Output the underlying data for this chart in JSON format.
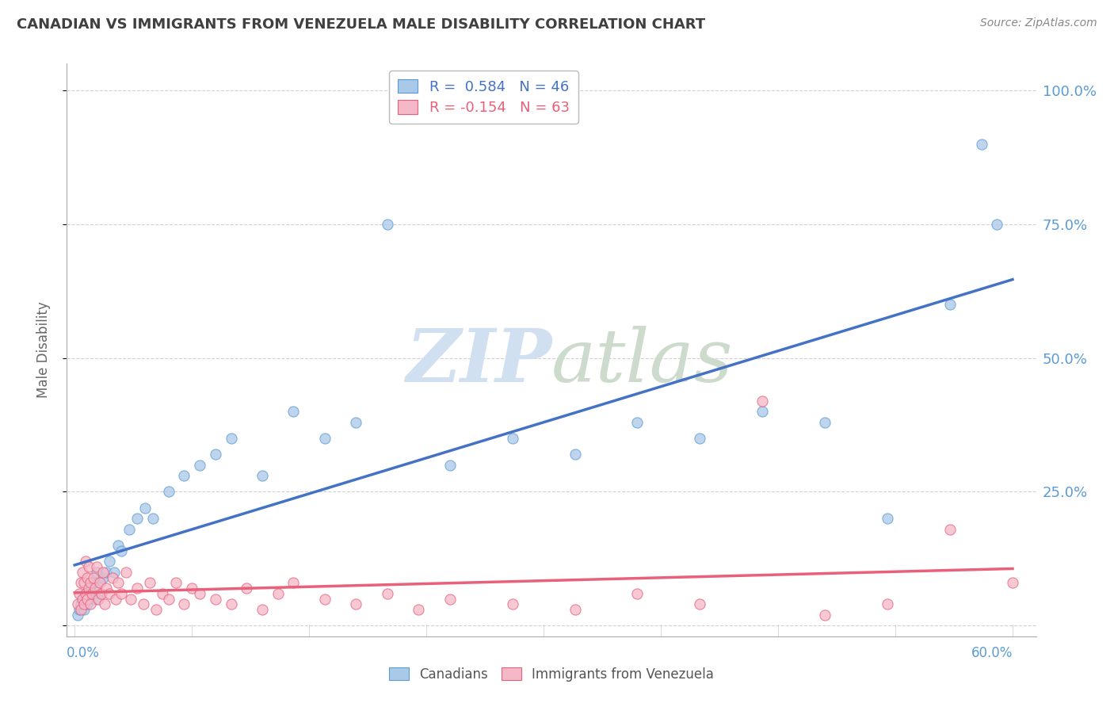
{
  "title": "CANADIAN VS IMMIGRANTS FROM VENEZUELA MALE DISABILITY CORRELATION CHART",
  "source": "Source: ZipAtlas.com",
  "ylabel": "Male Disability",
  "legend_labels": [
    "Canadians",
    "Immigrants from Venezuela"
  ],
  "R_canadian": 0.584,
  "N_canadian": 46,
  "R_venezuela": -0.154,
  "N_venezuela": 63,
  "blue_color": "#aac8e8",
  "pink_color": "#f5b8c8",
  "blue_edge_color": "#5b9bd5",
  "pink_edge_color": "#e8607a",
  "blue_line_color": "#4472c4",
  "pink_line_color": "#e8607a",
  "title_color": "#404040",
  "axis_label_color": "#5b9bd5",
  "grid_color": "#cccccc",
  "watermark_color": "#d0e0f0",
  "xlim": [
    0.0,
    0.6
  ],
  "ylim": [
    0.0,
    1.0
  ],
  "yticks": [
    0.0,
    0.25,
    0.5,
    0.75,
    1.0
  ],
  "ytick_labels": [
    "",
    "25.0%",
    "50.0%",
    "75.0%",
    "100.0%"
  ],
  "canadians_x": [
    0.002,
    0.003,
    0.004,
    0.005,
    0.006,
    0.007,
    0.008,
    0.009,
    0.01,
    0.011,
    0.012,
    0.013,
    0.014,
    0.015,
    0.016,
    0.018,
    0.02,
    0.022,
    0.025,
    0.028,
    0.03,
    0.035,
    0.04,
    0.045,
    0.05,
    0.06,
    0.07,
    0.08,
    0.09,
    0.1,
    0.12,
    0.14,
    0.16,
    0.18,
    0.2,
    0.24,
    0.28,
    0.32,
    0.36,
    0.4,
    0.44,
    0.48,
    0.52,
    0.56,
    0.58,
    0.59
  ],
  "canadians_y": [
    0.02,
    0.03,
    0.04,
    0.05,
    0.03,
    0.06,
    0.04,
    0.05,
    0.07,
    0.06,
    0.08,
    0.05,
    0.1,
    0.08,
    0.06,
    0.09,
    0.1,
    0.12,
    0.1,
    0.15,
    0.14,
    0.18,
    0.2,
    0.22,
    0.2,
    0.25,
    0.28,
    0.3,
    0.32,
    0.35,
    0.28,
    0.4,
    0.35,
    0.38,
    0.75,
    0.3,
    0.35,
    0.32,
    0.38,
    0.35,
    0.4,
    0.38,
    0.2,
    0.6,
    0.9,
    0.75
  ],
  "venezuela_x": [
    0.002,
    0.003,
    0.004,
    0.004,
    0.005,
    0.005,
    0.006,
    0.006,
    0.007,
    0.007,
    0.008,
    0.008,
    0.009,
    0.009,
    0.01,
    0.01,
    0.011,
    0.012,
    0.013,
    0.014,
    0.015,
    0.016,
    0.017,
    0.018,
    0.019,
    0.02,
    0.022,
    0.024,
    0.026,
    0.028,
    0.03,
    0.033,
    0.036,
    0.04,
    0.044,
    0.048,
    0.052,
    0.056,
    0.06,
    0.065,
    0.07,
    0.075,
    0.08,
    0.09,
    0.1,
    0.11,
    0.12,
    0.13,
    0.14,
    0.16,
    0.18,
    0.2,
    0.22,
    0.24,
    0.28,
    0.32,
    0.36,
    0.4,
    0.44,
    0.48,
    0.52,
    0.56,
    0.6
  ],
  "venezuela_y": [
    0.04,
    0.06,
    0.03,
    0.08,
    0.05,
    0.1,
    0.04,
    0.08,
    0.06,
    0.12,
    0.05,
    0.09,
    0.07,
    0.11,
    0.04,
    0.08,
    0.06,
    0.09,
    0.07,
    0.11,
    0.05,
    0.08,
    0.06,
    0.1,
    0.04,
    0.07,
    0.06,
    0.09,
    0.05,
    0.08,
    0.06,
    0.1,
    0.05,
    0.07,
    0.04,
    0.08,
    0.03,
    0.06,
    0.05,
    0.08,
    0.04,
    0.07,
    0.06,
    0.05,
    0.04,
    0.07,
    0.03,
    0.06,
    0.08,
    0.05,
    0.04,
    0.06,
    0.03,
    0.05,
    0.04,
    0.03,
    0.06,
    0.04,
    0.42,
    0.02,
    0.04,
    0.18,
    0.08
  ]
}
